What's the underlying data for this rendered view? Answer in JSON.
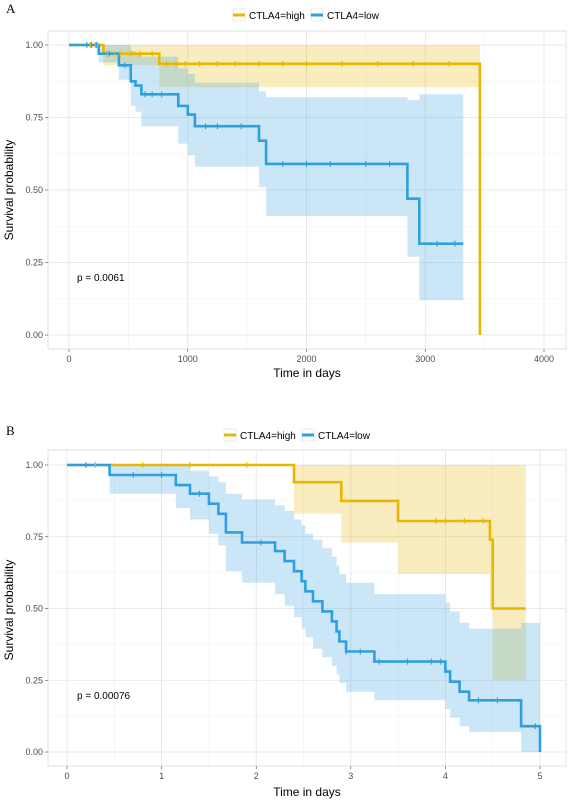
{
  "chart_data": [
    {
      "type": "line",
      "subtype": "kaplan-meier",
      "panel_label": "A",
      "xlabel": "Time in days",
      "ylabel": "Survival probability",
      "xlim": [
        0,
        4000
      ],
      "ylim": [
        0,
        1
      ],
      "x_ticks": [
        0,
        1000,
        2000,
        3000,
        4000
      ],
      "y_ticks": [
        0.0,
        0.25,
        0.5,
        0.75,
        1.0
      ],
      "y_tick_labels": [
        "0.00",
        "0.25",
        "0.50",
        "0.75",
        "1.00"
      ],
      "grid": true,
      "legend_placement": "top",
      "annotation": "p = 0.0061",
      "series": [
        {
          "name": "CTLA4=high",
          "color": "#e7b800",
          "steps": [
            [
              0,
              1.0
            ],
            [
              290,
              0.97
            ],
            [
              760,
              0.935
            ],
            [
              3460,
              0.0
            ]
          ],
          "end_x": 3460,
          "ci_steps": [
            [
              0,
              1.0,
              1.0
            ],
            [
              290,
              1.0,
              0.93
            ],
            [
              760,
              1.0,
              0.855
            ],
            [
              3460,
              1.0,
              0.855
            ]
          ],
          "ci_end_x": 3460,
          "censor_x": [
            180,
            220,
            240,
            320,
            380,
            430,
            520,
            600,
            700,
            820,
            900,
            980,
            1100,
            1250,
            1400,
            1600,
            1800,
            2000,
            2300,
            2600,
            2900,
            3200
          ]
        },
        {
          "name": "CTLA4=low",
          "color": "#2e9fdf",
          "steps": [
            [
              0,
              1.0
            ],
            [
              250,
              0.97
            ],
            [
              420,
              0.93
            ],
            [
              520,
              0.875
            ],
            [
              560,
              0.86
            ],
            [
              610,
              0.83
            ],
            [
              920,
              0.79
            ],
            [
              1000,
              0.76
            ],
            [
              1060,
              0.72
            ],
            [
              1360,
              0.72
            ],
            [
              1600,
              0.67
            ],
            [
              1660,
              0.59
            ],
            [
              2850,
              0.47
            ],
            [
              2950,
              0.315
            ],
            [
              3320,
              0.315
            ]
          ],
          "end_x": 3320,
          "ci_steps": [
            [
              0,
              1.0,
              1.0
            ],
            [
              250,
              1.0,
              0.94
            ],
            [
              420,
              1.0,
              0.88
            ],
            [
              520,
              0.98,
              0.79
            ],
            [
              560,
              0.97,
              0.77
            ],
            [
              610,
              0.96,
              0.72
            ],
            [
              920,
              0.92,
              0.66
            ],
            [
              1000,
              0.9,
              0.62
            ],
            [
              1060,
              0.87,
              0.58
            ],
            [
              1600,
              0.84,
              0.51
            ],
            [
              1660,
              0.82,
              0.41
            ],
            [
              2850,
              0.81,
              0.27
            ],
            [
              2950,
              0.83,
              0.12
            ],
            [
              3320,
              0.83,
              0.12
            ]
          ],
          "ci_end_x": 3320,
          "censor_x": [
            150,
            190,
            230,
            340,
            470,
            640,
            700,
            780,
            1150,
            1250,
            1450,
            1800,
            2000,
            2200,
            2500,
            2700,
            3100,
            3250
          ]
        }
      ]
    },
    {
      "type": "line",
      "subtype": "kaplan-meier",
      "panel_label": "B",
      "xlabel": "Time in days",
      "ylabel": "Survival probability",
      "xlim": [
        0,
        5
      ],
      "ylim": [
        0,
        1
      ],
      "x_ticks": [
        0,
        1,
        2,
        3,
        4,
        5
      ],
      "y_ticks": [
        0.0,
        0.25,
        0.5,
        0.75,
        1.0
      ],
      "y_tick_labels": [
        "0.00",
        "0.25",
        "0.50",
        "0.75",
        "1.00"
      ],
      "grid": true,
      "legend_placement": "top",
      "annotation": "p = 0.00076",
      "series": [
        {
          "name": "CTLA4=high",
          "color": "#e7b800",
          "steps": [
            [
              0,
              1.0
            ],
            [
              2.4,
              0.94
            ],
            [
              2.9,
              0.875
            ],
            [
              3.5,
              0.805
            ],
            [
              4.47,
              0.74
            ],
            [
              4.5,
              0.5
            ],
            [
              4.85,
              0.5
            ]
          ],
          "end_x": 4.85,
          "ci_steps": [
            [
              0,
              1.0,
              1.0
            ],
            [
              2.4,
              1.0,
              0.83
            ],
            [
              2.9,
              1.0,
              0.73
            ],
            [
              3.5,
              1.0,
              0.62
            ],
            [
              4.47,
              1.0,
              0.5
            ],
            [
              4.5,
              1.0,
              0.25
            ],
            [
              4.85,
              1.0,
              0.25
            ]
          ],
          "ci_end_x": 4.85,
          "censor_x": [
            0.3,
            0.8,
            1.3,
            1.9,
            3.9,
            4.0,
            4.2,
            4.4
          ]
        },
        {
          "name": "CTLA4=low",
          "color": "#2e9fdf",
          "steps": [
            [
              0,
              1.0
            ],
            [
              0.45,
              0.965
            ],
            [
              1.15,
              0.93
            ],
            [
              1.3,
              0.9
            ],
            [
              1.5,
              0.865
            ],
            [
              1.6,
              0.83
            ],
            [
              1.68,
              0.765
            ],
            [
              1.85,
              0.73
            ],
            [
              2.2,
              0.7
            ],
            [
              2.3,
              0.665
            ],
            [
              2.4,
              0.63
            ],
            [
              2.48,
              0.595
            ],
            [
              2.52,
              0.56
            ],
            [
              2.6,
              0.525
            ],
            [
              2.7,
              0.49
            ],
            [
              2.8,
              0.455
            ],
            [
              2.85,
              0.42
            ],
            [
              2.88,
              0.385
            ],
            [
              2.95,
              0.35
            ],
            [
              3.25,
              0.315
            ],
            [
              4.0,
              0.28
            ],
            [
              4.05,
              0.245
            ],
            [
              4.15,
              0.21
            ],
            [
              4.25,
              0.18
            ],
            [
              4.8,
              0.09
            ],
            [
              5.0,
              0.0
            ]
          ],
          "end_x": 5.0,
          "ci_steps": [
            [
              0,
              1.0,
              1.0
            ],
            [
              0.45,
              1.0,
              0.9
            ],
            [
              1.15,
              1.0,
              0.85
            ],
            [
              1.3,
              0.98,
              0.81
            ],
            [
              1.5,
              0.96,
              0.76
            ],
            [
              1.6,
              0.94,
              0.72
            ],
            [
              1.68,
              0.9,
              0.63
            ],
            [
              1.85,
              0.88,
              0.59
            ],
            [
              2.2,
              0.86,
              0.55
            ],
            [
              2.3,
              0.84,
              0.51
            ],
            [
              2.4,
              0.81,
              0.47
            ],
            [
              2.48,
              0.79,
              0.43
            ],
            [
              2.52,
              0.76,
              0.4
            ],
            [
              2.6,
              0.74,
              0.36
            ],
            [
              2.7,
              0.71,
              0.33
            ],
            [
              2.8,
              0.68,
              0.3
            ],
            [
              2.85,
              0.65,
              0.27
            ],
            [
              2.88,
              0.62,
              0.24
            ],
            [
              2.95,
              0.59,
              0.21
            ],
            [
              3.25,
              0.55,
              0.18
            ],
            [
              4.0,
              0.52,
              0.15
            ],
            [
              4.05,
              0.49,
              0.12
            ],
            [
              4.15,
              0.45,
              0.09
            ],
            [
              4.25,
              0.43,
              0.07
            ],
            [
              4.8,
              0.45,
              0.0
            ],
            [
              5.0,
              0.45,
              0.0
            ]
          ],
          "ci_end_x": 5.0,
          "censor_x": [
            0.2,
            0.7,
            1.0,
            1.4,
            2.05,
            2.95,
            3.1,
            3.3,
            3.6,
            3.85,
            3.95,
            4.35,
            4.55,
            4.95
          ]
        }
      ]
    }
  ]
}
